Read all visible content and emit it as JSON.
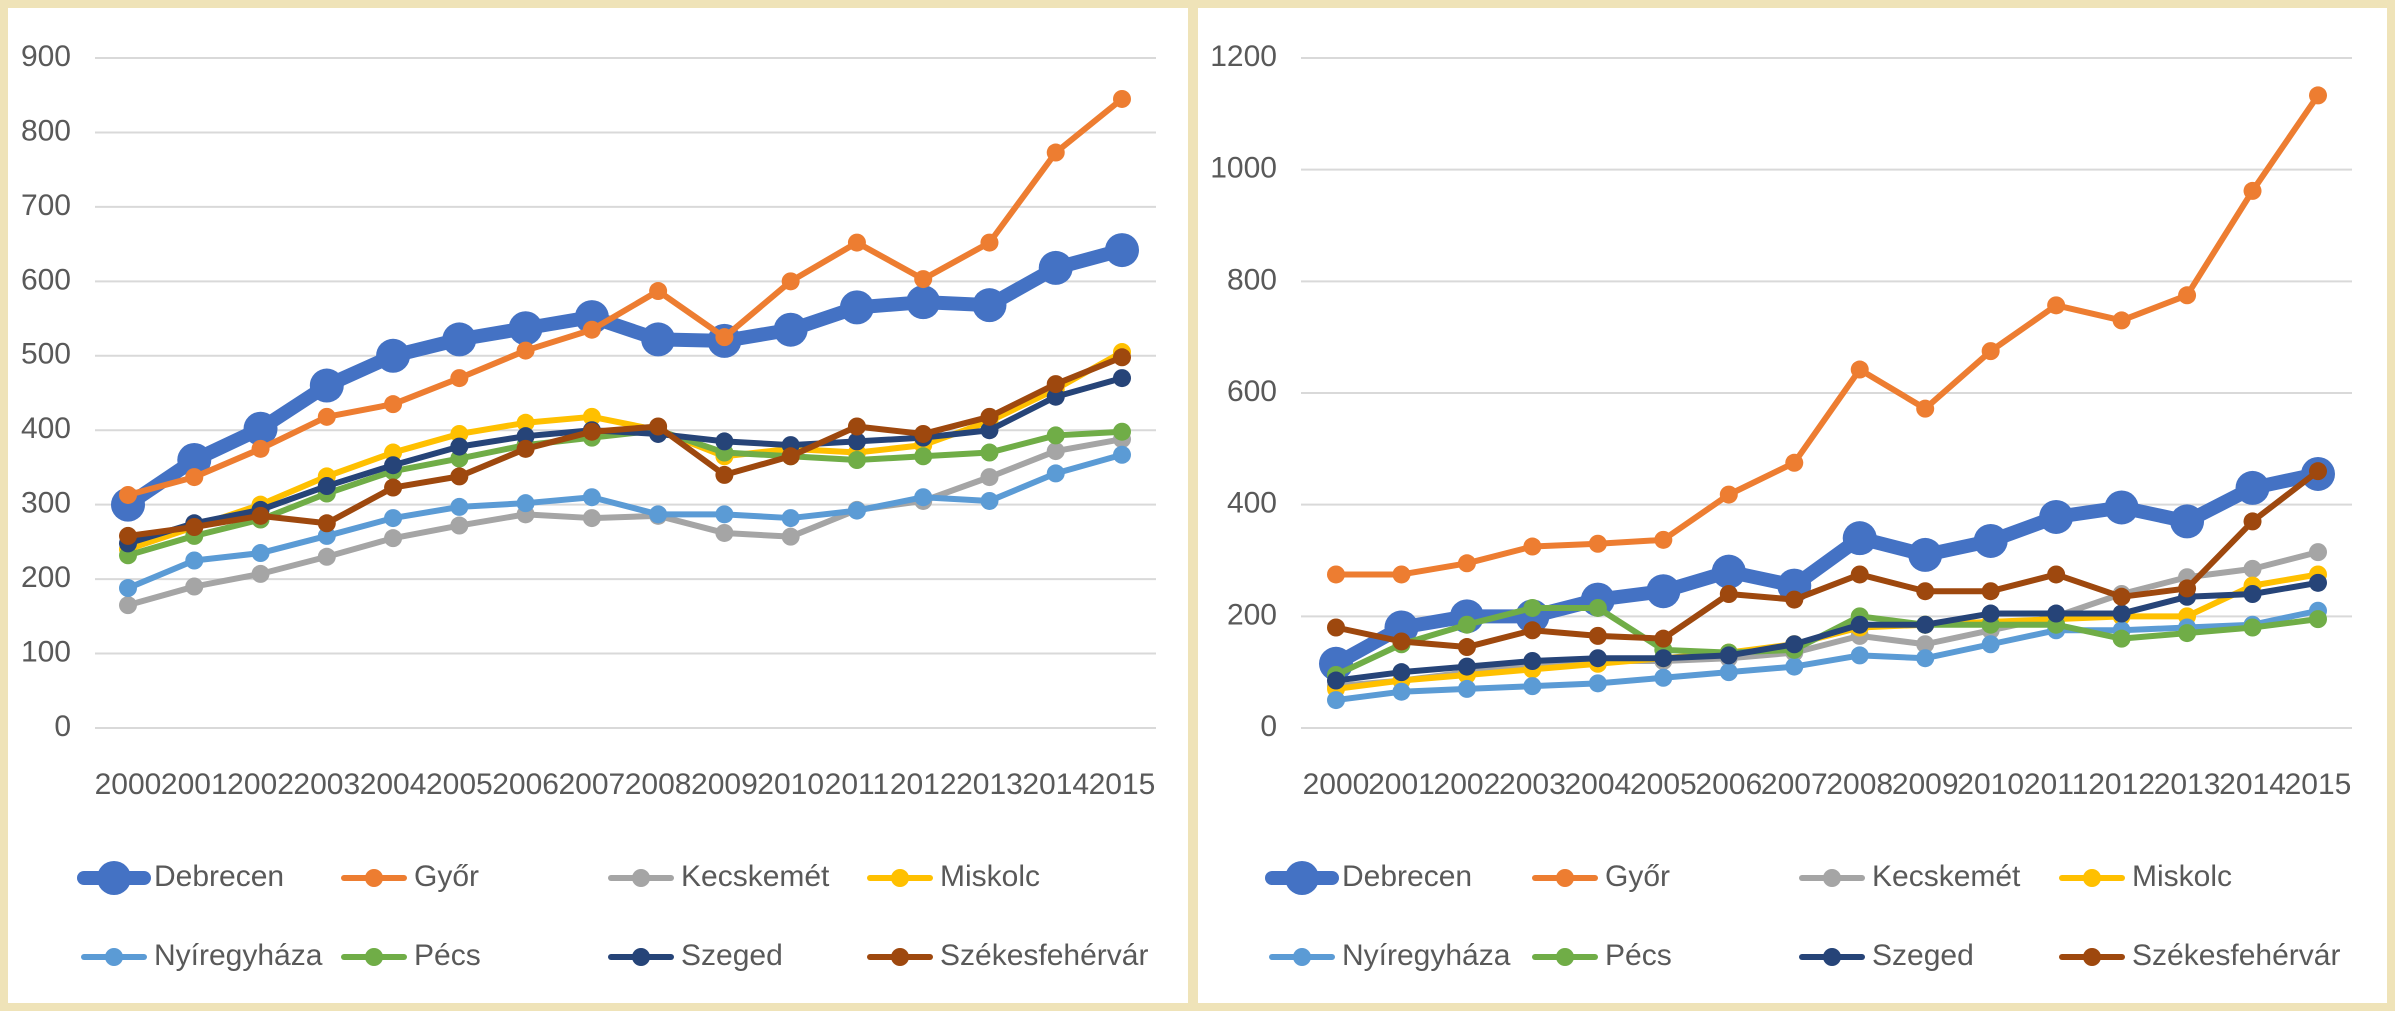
{
  "chart_data": [
    {
      "type": "line",
      "categories": [
        "2000",
        "2001",
        "2002",
        "2003",
        "2004",
        "2005",
        "2006",
        "2007",
        "2008",
        "2009",
        "2010",
        "2011",
        "2012",
        "2013",
        "2014",
        "2015"
      ],
      "ylim": [
        0,
        900
      ],
      "yticks": [
        0,
        100,
        200,
        300,
        400,
        500,
        600,
        700,
        800,
        900
      ],
      "grid": true,
      "legend": "bottom",
      "series": [
        {
          "name": "Debrecen",
          "color": "#4472c4",
          "line_width": 14,
          "values": [
            300,
            360,
            402,
            460,
            500,
            522,
            537,
            552,
            522,
            520,
            535,
            565,
            572,
            568,
            618,
            642
          ]
        },
        {
          "name": "Győr",
          "color": "#ed7d31",
          "line_width": 6,
          "values": [
            313,
            337,
            375,
            418,
            435,
            470,
            507,
            535,
            587,
            525,
            600,
            652,
            603,
            652,
            773,
            845
          ]
        },
        {
          "name": "Kecskemét",
          "color": "#a5a5a5",
          "line_width": 6,
          "values": [
            165,
            190,
            207,
            230,
            255,
            272,
            287,
            282,
            285,
            262,
            257,
            293,
            305,
            337,
            372,
            388
          ]
        },
        {
          "name": "Miskolc",
          "color": "#ffc000",
          "line_width": 6,
          "values": [
            240,
            270,
            300,
            338,
            370,
            395,
            410,
            418,
            400,
            365,
            375,
            370,
            380,
            412,
            455,
            505
          ]
        },
        {
          "name": "Nyíregyháza",
          "color": "#5b9bd5",
          "line_width": 6,
          "values": [
            188,
            225,
            235,
            258,
            282,
            297,
            302,
            310,
            287,
            287,
            282,
            292,
            310,
            305,
            342,
            367
          ]
        },
        {
          "name": "Pécs",
          "color": "#70ad47",
          "line_width": 6,
          "values": [
            232,
            258,
            280,
            315,
            345,
            362,
            380,
            390,
            400,
            370,
            365,
            360,
            365,
            370,
            393,
            398
          ]
        },
        {
          "name": "Szeged",
          "color": "#264478",
          "line_width": 6,
          "values": [
            248,
            275,
            293,
            325,
            353,
            378,
            392,
            400,
            395,
            385,
            380,
            385,
            390,
            400,
            445,
            470
          ]
        },
        {
          "name": "Székesfehérvár",
          "color": "#9e480e",
          "line_width": 6,
          "values": [
            258,
            270,
            285,
            275,
            323,
            338,
            375,
            398,
            405,
            340,
            365,
            405,
            395,
            418,
            462,
            498
          ]
        }
      ]
    },
    {
      "type": "line",
      "categories": [
        "2000",
        "2001",
        "2002",
        "2003",
        "2004",
        "2005",
        "2006",
        "2007",
        "2008",
        "2009",
        "2010",
        "2011",
        "2012",
        "2013",
        "2014",
        "2015"
      ],
      "ylim": [
        0,
        1200
      ],
      "yticks": [
        0,
        200,
        400,
        600,
        800,
        1000,
        1200
      ],
      "grid": true,
      "legend": "bottom",
      "series": [
        {
          "name": "Debrecen",
          "color": "#4472c4",
          "line_width": 14,
          "values": [
            115,
            180,
            200,
            200,
            230,
            245,
            280,
            255,
            340,
            310,
            335,
            378,
            395,
            370,
            430,
            455
          ]
        },
        {
          "name": "Győr",
          "color": "#ed7d31",
          "line_width": 6,
          "values": [
            275,
            275,
            295,
            325,
            330,
            337,
            418,
            475,
            642,
            572,
            675,
            757,
            730,
            775,
            962,
            1133
          ]
        },
        {
          "name": "Kecskemét",
          "color": "#a5a5a5",
          "line_width": 6,
          "values": [
            75,
            85,
            100,
            115,
            120,
            120,
            125,
            135,
            165,
            150,
            175,
            200,
            240,
            270,
            285,
            315
          ]
        },
        {
          "name": "Miskolc",
          "color": "#ffc000",
          "line_width": 6,
          "values": [
            70,
            85,
            95,
            105,
            115,
            125,
            135,
            150,
            180,
            185,
            190,
            195,
            200,
            200,
            255,
            275
          ]
        },
        {
          "name": "Nyíregyháza",
          "color": "#5b9bd5",
          "line_width": 6,
          "values": [
            50,
            65,
            70,
            75,
            80,
            90,
            100,
            110,
            130,
            125,
            150,
            175,
            175,
            180,
            185,
            210
          ]
        },
        {
          "name": "Pécs",
          "color": "#70ad47",
          "line_width": 6,
          "values": [
            95,
            150,
            185,
            215,
            215,
            140,
            135,
            140,
            200,
            185,
            185,
            185,
            160,
            170,
            180,
            195
          ]
        },
        {
          "name": "Szeged",
          "color": "#264478",
          "line_width": 6,
          "values": [
            85,
            100,
            110,
            120,
            125,
            125,
            130,
            150,
            185,
            185,
            205,
            205,
            205,
            235,
            240,
            260
          ]
        },
        {
          "name": "Székesfehérvár",
          "color": "#9e480e",
          "line_width": 6,
          "values": [
            180,
            155,
            145,
            175,
            165,
            160,
            240,
            230,
            275,
            245,
            245,
            275,
            235,
            250,
            370,
            460
          ]
        }
      ]
    }
  ]
}
